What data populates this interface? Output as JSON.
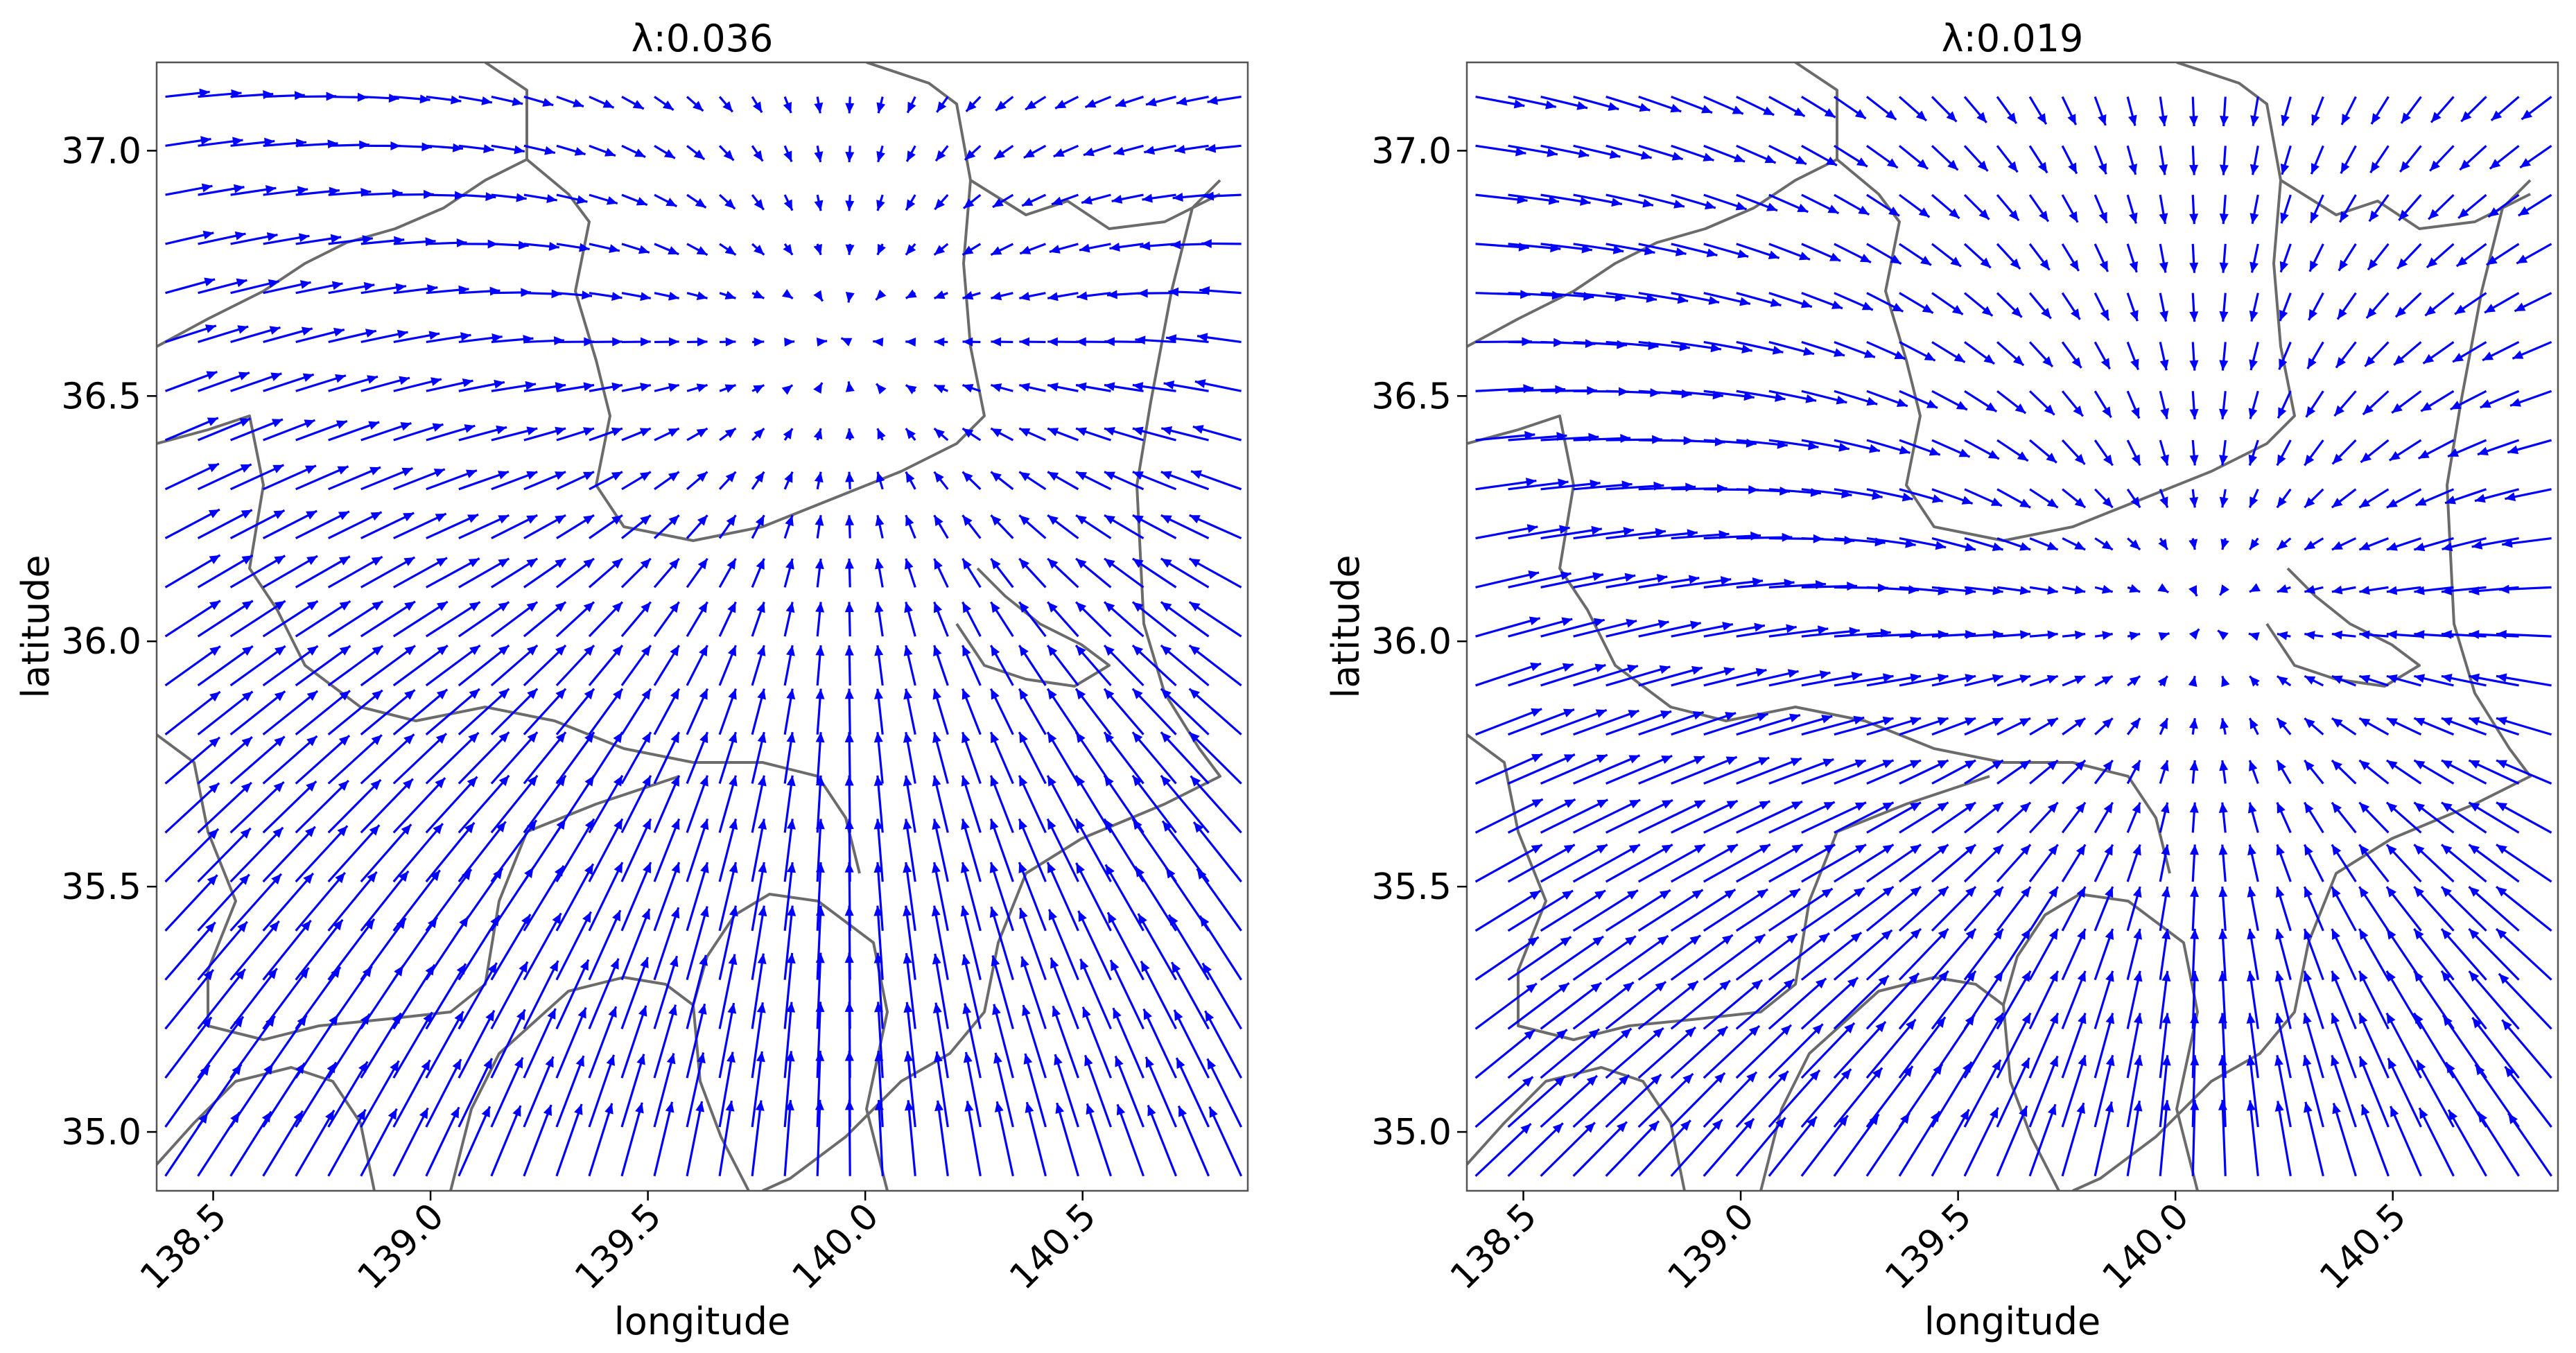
{
  "figure": {
    "arrow_color": "#0000ff",
    "coastline_color": "#6b6b6b"
  },
  "chart_data": [
    {
      "type": "quiver",
      "title": "λ:0.036",
      "xlabel": "longitude",
      "ylabel": "latitude",
      "xlim": [
        138.37,
        140.88
      ],
      "ylim": [
        34.88,
        37.18
      ],
      "x_ticks": [
        138.5,
        139.0,
        139.5,
        140.0,
        140.5
      ],
      "x_tick_labels": [
        "138.5",
        "139.0",
        "139.5",
        "140.0",
        "140.5"
      ],
      "y_ticks": [
        35.0,
        35.5,
        36.0,
        36.5,
        37.0
      ],
      "y_tick_labels": [
        "35.0",
        "35.5",
        "36.0",
        "36.5",
        "37.0"
      ],
      "grid": false,
      "field": {
        "grid_step_lon": 0.075,
        "grid_step_lat": 0.1,
        "converge_point": [
          139.95,
          35.95
        ],
        "converge_strength": 0.09,
        "background_flow": [
          0.0,
          0.06
        ],
        "arrow_scale": 1.3
      }
    },
    {
      "type": "quiver",
      "title": "λ:0.019",
      "xlabel": "longitude",
      "ylabel": "latitude",
      "xlim": [
        138.37,
        140.88
      ],
      "ylim": [
        34.88,
        37.18
      ],
      "x_ticks": [
        138.5,
        139.0,
        139.5,
        140.0,
        140.5
      ],
      "x_tick_labels": [
        "138.5",
        "139.0",
        "139.5",
        "140.0",
        "140.5"
      ],
      "y_ticks": [
        35.0,
        35.5,
        36.0,
        36.5,
        37.0
      ],
      "y_tick_labels": [
        "35.0",
        "35.5",
        "36.0",
        "36.5",
        "37.0"
      ],
      "grid": false,
      "field": {
        "grid_step_lon": 0.075,
        "grid_step_lat": 0.1,
        "converge_point": [
          140.07,
          35.5
        ],
        "converge_strength": 0.11,
        "background_flow": [
          0.0,
          0.06
        ],
        "arrow_scale": 1.3
      }
    }
  ]
}
